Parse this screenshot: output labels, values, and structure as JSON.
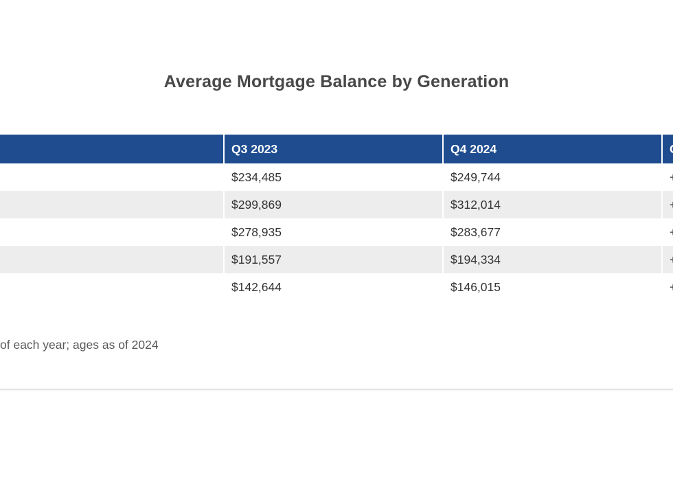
{
  "page": {
    "title": "Average Mortgage Balance by Generation",
    "footnote": "of each year; ages as of 2024"
  },
  "chart_data": {
    "type": "table",
    "title": "Average Mortgage Balance by Generation",
    "columns": [
      "",
      "Q3 2023",
      "Q4 2024",
      "Change"
    ],
    "rows": [
      [
        "",
        "$234,485",
        "$249,744",
        "+"
      ],
      [
        "",
        "$299,869",
        "$312,014",
        "+"
      ],
      [
        "",
        "$278,935",
        "$283,677",
        "+"
      ],
      [
        "",
        "$191,557",
        "$194,334",
        "+"
      ],
      [
        "",
        "$142,644",
        "$146,015",
        "+"
      ]
    ],
    "footnote": "of each year; ages as of 2024",
    "layout": {
      "legend_position": "none",
      "row_striping": "alternating",
      "header_style": "solid-fill"
    }
  },
  "colors": {
    "header_bg": "#1e4c8f",
    "header_text": "#ffffff",
    "row_alt_bg": "#ededed",
    "row_bg": "#ffffff",
    "body_text": "#333333",
    "title_text": "#484848",
    "footnote_text": "#595959",
    "divider": "#e3e3e3"
  }
}
